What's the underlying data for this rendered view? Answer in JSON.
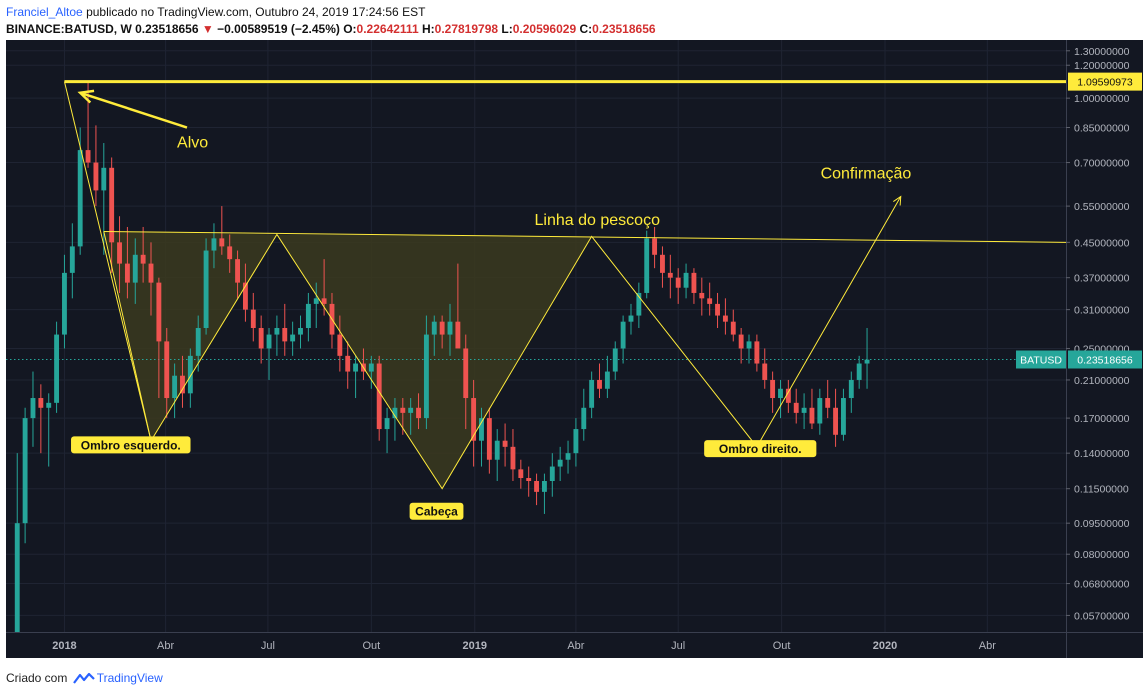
{
  "header": {
    "author": "Franciel_Altoe",
    "published_text": "publicado no TradingView.com, Outubro 24, 2019 17:24:56 EST",
    "symbol_line": "BINANCE:BATUSD, W",
    "price": "0.23518656",
    "change": "−0.00589519 (−2.45%)",
    "open_label": "O:",
    "open": "0.22642111",
    "high_label": "H:",
    "high": "0.27819798",
    "low_label": "L:",
    "low": "0.20596029",
    "close_label": "C:",
    "close": "0.23518656"
  },
  "footer": {
    "created_with": "Criado com",
    "brand": "TradingView"
  },
  "colors": {
    "background": "#131722",
    "grid": "#1f2433",
    "up": "#26a69a",
    "down": "#ef5350",
    "drawing": "#ffeb3b",
    "fill": "#3b3a1f",
    "axis_bg": "#131722",
    "axis_text": "#b2b5be"
  },
  "chart_data": {
    "type": "candlestick",
    "y_scale": "log",
    "ylim": [
      0.052,
      1.38
    ],
    "y_ticks": [
      1.3,
      1.2,
      1.0,
      0.85,
      0.7,
      0.55,
      0.45,
      0.37,
      0.31,
      0.25,
      0.21,
      0.17,
      0.14,
      0.115,
      0.095,
      0.08,
      0.068,
      0.057
    ],
    "y_tick_labels": [
      "1.30000000",
      "1.20000000",
      "1.00000000",
      "0.85000000",
      "0.70000000",
      "0.55000000",
      "0.45000000",
      "0.37000000",
      "0.31000000",
      "0.25000000",
      "0.21000000",
      "0.17000000",
      "0.14000000",
      "0.11500000",
      "0.09500000",
      "0.08000000",
      "0.06800000",
      "0.05700000"
    ],
    "x_range": [
      "2017-11-10",
      "2020-06-10"
    ],
    "x_ticks": [
      {
        "date": "2018-01-01",
        "label": "2018",
        "bold": true
      },
      {
        "date": "2018-04-01",
        "label": "Abr",
        "bold": false
      },
      {
        "date": "2018-07-01",
        "label": "Jul",
        "bold": false
      },
      {
        "date": "2018-10-01",
        "label": "Out",
        "bold": false
      },
      {
        "date": "2019-01-01",
        "label": "2019",
        "bold": true
      },
      {
        "date": "2019-04-01",
        "label": "Abr",
        "bold": false
      },
      {
        "date": "2019-07-01",
        "label": "Jul",
        "bold": false
      },
      {
        "date": "2019-10-01",
        "label": "Out",
        "bold": false
      },
      {
        "date": "2020-01-01",
        "label": "2020",
        "bold": true
      },
      {
        "date": "2020-04-01",
        "label": "Abr",
        "bold": false
      }
    ],
    "first_candle_date": "2017-11-20",
    "candles": [
      [
        0.052,
        0.14,
        0.052,
        0.095
      ],
      [
        0.095,
        0.18,
        0.085,
        0.17
      ],
      [
        0.17,
        0.22,
        0.145,
        0.19
      ],
      [
        0.19,
        0.205,
        0.14,
        0.18
      ],
      [
        0.18,
        0.195,
        0.13,
        0.185
      ],
      [
        0.185,
        0.29,
        0.175,
        0.27
      ],
      [
        0.27,
        0.42,
        0.25,
        0.38
      ],
      [
        0.38,
        0.5,
        0.33,
        0.44
      ],
      [
        0.44,
        0.85,
        0.42,
        0.75
      ],
      [
        0.75,
        1.09,
        0.68,
        0.7
      ],
      [
        0.7,
        0.86,
        0.55,
        0.6
      ],
      [
        0.6,
        0.78,
        0.42,
        0.68
      ],
      [
        0.68,
        0.72,
        0.38,
        0.45
      ],
      [
        0.45,
        0.52,
        0.34,
        0.4
      ],
      [
        0.4,
        0.49,
        0.33,
        0.36
      ],
      [
        0.36,
        0.46,
        0.32,
        0.42
      ],
      [
        0.42,
        0.49,
        0.36,
        0.4
      ],
      [
        0.4,
        0.45,
        0.3,
        0.36
      ],
      [
        0.36,
        0.37,
        0.19,
        0.26
      ],
      [
        0.26,
        0.28,
        0.17,
        0.19
      ],
      [
        0.19,
        0.23,
        0.17,
        0.215
      ],
      [
        0.215,
        0.24,
        0.18,
        0.195
      ],
      [
        0.195,
        0.25,
        0.18,
        0.24
      ],
      [
        0.24,
        0.3,
        0.22,
        0.28
      ],
      [
        0.28,
        0.46,
        0.27,
        0.43
      ],
      [
        0.43,
        0.5,
        0.39,
        0.46
      ],
      [
        0.46,
        0.55,
        0.42,
        0.44
      ],
      [
        0.44,
        0.47,
        0.38,
        0.41
      ],
      [
        0.41,
        0.43,
        0.33,
        0.36
      ],
      [
        0.36,
        0.4,
        0.29,
        0.31
      ],
      [
        0.31,
        0.34,
        0.26,
        0.28
      ],
      [
        0.28,
        0.3,
        0.23,
        0.25
      ],
      [
        0.25,
        0.28,
        0.21,
        0.27
      ],
      [
        0.27,
        0.3,
        0.24,
        0.28
      ],
      [
        0.28,
        0.32,
        0.24,
        0.26
      ],
      [
        0.26,
        0.29,
        0.24,
        0.27
      ],
      [
        0.27,
        0.3,
        0.25,
        0.28
      ],
      [
        0.28,
        0.34,
        0.26,
        0.32
      ],
      [
        0.32,
        0.36,
        0.28,
        0.33
      ],
      [
        0.33,
        0.41,
        0.3,
        0.32
      ],
      [
        0.32,
        0.34,
        0.25,
        0.27
      ],
      [
        0.27,
        0.3,
        0.22,
        0.24
      ],
      [
        0.24,
        0.26,
        0.2,
        0.22
      ],
      [
        0.22,
        0.24,
        0.19,
        0.23
      ],
      [
        0.23,
        0.25,
        0.21,
        0.22
      ],
      [
        0.22,
        0.24,
        0.2,
        0.23
      ],
      [
        0.23,
        0.24,
        0.15,
        0.16
      ],
      [
        0.16,
        0.18,
        0.14,
        0.17
      ],
      [
        0.17,
        0.19,
        0.15,
        0.18
      ],
      [
        0.18,
        0.19,
        0.155,
        0.175
      ],
      [
        0.175,
        0.19,
        0.155,
        0.18
      ],
      [
        0.18,
        0.195,
        0.16,
        0.17
      ],
      [
        0.17,
        0.3,
        0.16,
        0.27
      ],
      [
        0.27,
        0.3,
        0.24,
        0.29
      ],
      [
        0.29,
        0.3,
        0.25,
        0.27
      ],
      [
        0.27,
        0.32,
        0.24,
        0.29
      ],
      [
        0.29,
        0.4,
        0.26,
        0.25
      ],
      [
        0.25,
        0.27,
        0.16,
        0.19
      ],
      [
        0.19,
        0.21,
        0.13,
        0.15
      ],
      [
        0.15,
        0.18,
        0.13,
        0.17
      ],
      [
        0.17,
        0.18,
        0.125,
        0.135
      ],
      [
        0.135,
        0.16,
        0.12,
        0.15
      ],
      [
        0.15,
        0.165,
        0.13,
        0.145
      ],
      [
        0.145,
        0.16,
        0.12,
        0.128
      ],
      [
        0.128,
        0.135,
        0.115,
        0.122
      ],
      [
        0.122,
        0.13,
        0.11,
        0.12
      ],
      [
        0.12,
        0.125,
        0.105,
        0.113
      ],
      [
        0.113,
        0.125,
        0.1,
        0.12
      ],
      [
        0.12,
        0.14,
        0.11,
        0.13
      ],
      [
        0.13,
        0.145,
        0.12,
        0.135
      ],
      [
        0.135,
        0.15,
        0.125,
        0.14
      ],
      [
        0.14,
        0.17,
        0.13,
        0.16
      ],
      [
        0.16,
        0.2,
        0.15,
        0.18
      ],
      [
        0.18,
        0.22,
        0.17,
        0.21
      ],
      [
        0.21,
        0.23,
        0.19,
        0.2
      ],
      [
        0.2,
        0.24,
        0.19,
        0.22
      ],
      [
        0.22,
        0.26,
        0.21,
        0.25
      ],
      [
        0.25,
        0.3,
        0.23,
        0.29
      ],
      [
        0.29,
        0.32,
        0.27,
        0.3
      ],
      [
        0.3,
        0.36,
        0.28,
        0.34
      ],
      [
        0.34,
        0.48,
        0.33,
        0.46
      ],
      [
        0.46,
        0.49,
        0.39,
        0.42
      ],
      [
        0.42,
        0.44,
        0.35,
        0.38
      ],
      [
        0.38,
        0.42,
        0.33,
        0.37
      ],
      [
        0.37,
        0.39,
        0.32,
        0.35
      ],
      [
        0.35,
        0.4,
        0.33,
        0.38
      ],
      [
        0.38,
        0.39,
        0.32,
        0.34
      ],
      [
        0.34,
        0.37,
        0.3,
        0.33
      ],
      [
        0.33,
        0.36,
        0.3,
        0.32
      ],
      [
        0.32,
        0.34,
        0.28,
        0.3
      ],
      [
        0.3,
        0.33,
        0.27,
        0.29
      ],
      [
        0.29,
        0.31,
        0.26,
        0.27
      ],
      [
        0.27,
        0.28,
        0.23,
        0.25
      ],
      [
        0.25,
        0.27,
        0.23,
        0.26
      ],
      [
        0.26,
        0.27,
        0.22,
        0.23
      ],
      [
        0.23,
        0.25,
        0.2,
        0.21
      ],
      [
        0.21,
        0.22,
        0.175,
        0.19
      ],
      [
        0.19,
        0.21,
        0.17,
        0.2
      ],
      [
        0.2,
        0.21,
        0.175,
        0.185
      ],
      [
        0.185,
        0.2,
        0.165,
        0.175
      ],
      [
        0.175,
        0.195,
        0.16,
        0.18
      ],
      [
        0.18,
        0.2,
        0.16,
        0.165
      ],
      [
        0.165,
        0.2,
        0.155,
        0.19
      ],
      [
        0.19,
        0.21,
        0.17,
        0.18
      ],
      [
        0.18,
        0.2,
        0.145,
        0.155
      ],
      [
        0.155,
        0.2,
        0.15,
        0.19
      ],
      [
        0.19,
        0.22,
        0.175,
        0.21
      ],
      [
        0.21,
        0.24,
        0.2,
        0.23
      ],
      [
        0.23,
        0.28,
        0.2,
        0.235
      ]
    ],
    "last_price": 0.23518656,
    "last_price_label": "0.23518656",
    "symbol_tag": "BATUSD",
    "target_price": 1.09590973,
    "target_label": "1.09590973",
    "drawing_points": {
      "target_start": [
        "2018-01-01",
        1.0959
      ],
      "neck_start": [
        "2018-02-05",
        0.478
      ],
      "neck_end": [
        "2020-06-10",
        0.45
      ],
      "left_shoulder": [
        "2018-03-19",
        0.15
      ],
      "neck_mid1": [
        "2018-07-09",
        0.47
      ],
      "head": [
        "2018-12-03",
        0.115
      ],
      "neck_mid2": [
        "2019-04-15",
        0.465
      ],
      "right_shoulder": [
        "2019-09-09",
        0.145
      ],
      "left_tri_start": [
        "2018-01-01",
        1.0959
      ],
      "confirm_end": [
        "2020-01-15",
        0.58
      ],
      "label_arrow_from": [
        "2018-04-20",
        0.85
      ],
      "label_arrow_to": [
        "2018-01-15",
        1.03
      ]
    },
    "annotations": [
      {
        "text": "Alvo",
        "date": "2018-04-25",
        "price": 0.76,
        "style": "plain"
      },
      {
        "text": "Confirmação",
        "date": "2019-12-15",
        "price": 0.64,
        "style": "plain"
      },
      {
        "text": "Linha do pescoço",
        "date": "2019-04-20",
        "price": 0.495,
        "style": "plain"
      },
      {
        "text": "Ombro esquerdo.",
        "date": "2018-03-01",
        "price": 0.143,
        "style": "box"
      },
      {
        "text": "Cabeça",
        "date": "2018-11-28",
        "price": 0.099,
        "style": "box"
      },
      {
        "text": "Ombro direito.",
        "date": "2019-09-12",
        "price": 0.14,
        "style": "box"
      }
    ]
  }
}
